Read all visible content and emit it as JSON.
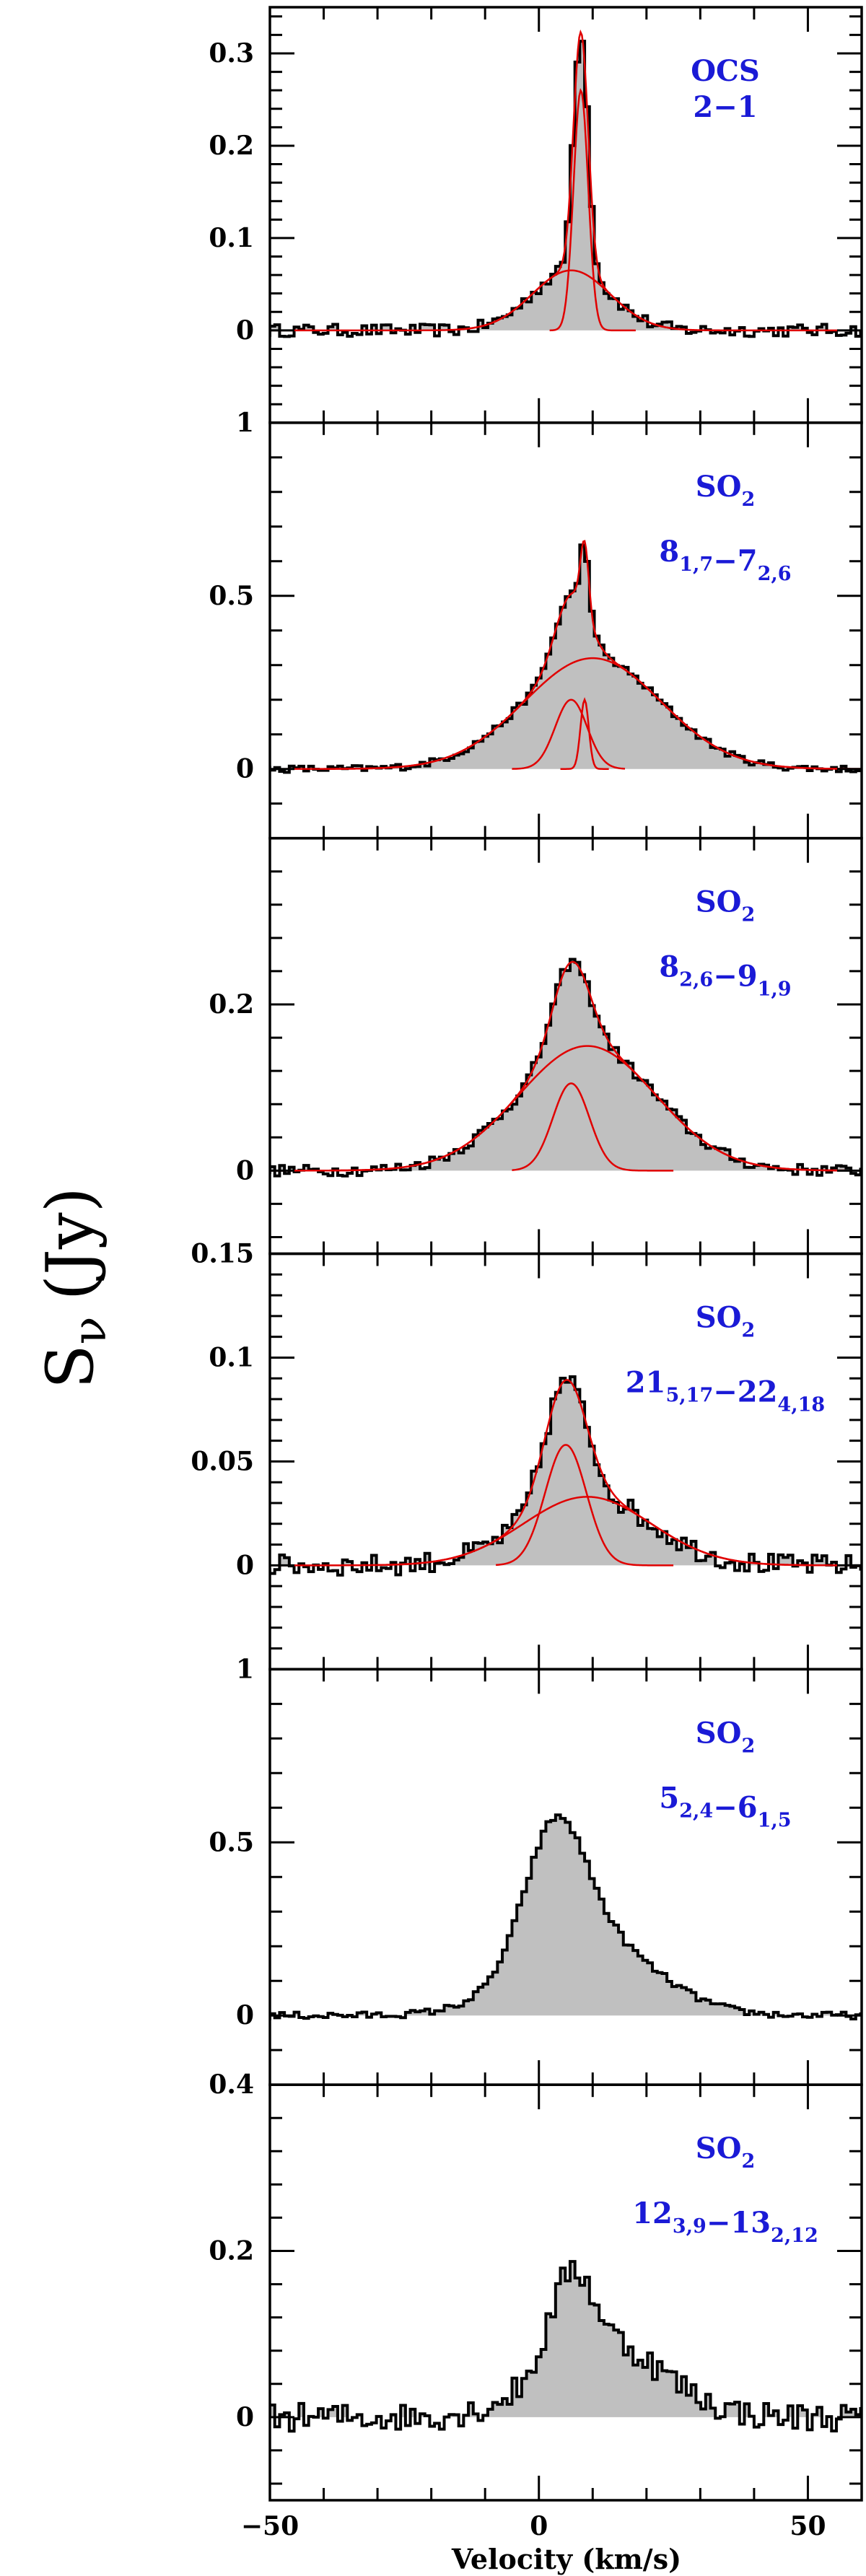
{
  "chart_data": {
    "type": "line",
    "ylabel_main": "S",
    "ylabel_sub": "ν",
    "ylabel_unit": "(Jy)",
    "xlabel": "Velocity (km/s)",
    "xlim": [
      -50,
      60
    ],
    "x_ticks": [
      -50,
      0,
      50
    ],
    "colors": {
      "spectrum": "#000000",
      "fill": "#c0c0c0",
      "fit": "#e00000",
      "label": "#1a1ad6"
    },
    "panels": [
      {
        "molecule": "OCS",
        "transition": "2−1",
        "ylim": [
          -0.1,
          0.35
        ],
        "y_ticks": [
          0,
          0.1,
          0.2,
          0.3
        ],
        "y_tick_labels": [
          "0",
          "0.1",
          "0.2",
          "0.3"
        ],
        "noise": 0.004,
        "components": [
          {
            "amp": 0.065,
            "center": 6.0,
            "fwhm": 17.0
          },
          {
            "amp": 0.26,
            "center": 7.8,
            "fwhm": 3.2
          }
        ],
        "fit_range": [
          -50,
          60
        ],
        "fit_comp_ranges": [
          [
            -15,
            25
          ],
          [
            2,
            18
          ]
        ],
        "show_fit": true
      },
      {
        "molecule": "SO",
        "molecule_sub": "2",
        "transition_parts": [
          [
            "8",
            "1,7"
          ],
          [
            "−7",
            "2,6"
          ]
        ],
        "ylim": [
          -0.2,
          1.0
        ],
        "y_ticks": [
          0,
          0.5,
          1
        ],
        "y_tick_labels": [
          "0",
          "0.5",
          "1"
        ],
        "noise": 0.006,
        "components": [
          {
            "amp": 0.32,
            "center": 10.0,
            "fwhm": 30.0
          },
          {
            "amp": 0.2,
            "center": 6.0,
            "fwhm": 7.0
          },
          {
            "amp": 0.2,
            "center": 8.5,
            "fwhm": 1.8
          }
        ],
        "fit_range": [
          -50,
          60
        ],
        "fit_comp_ranges": [
          [
            -40,
            60
          ],
          [
            -5,
            16
          ],
          [
            4,
            13
          ]
        ],
        "show_fit": true
      },
      {
        "molecule": "SO",
        "molecule_sub": "2",
        "transition_parts": [
          [
            "8",
            "2,6"
          ],
          [
            "−9",
            "1,9"
          ]
        ],
        "ylim": [
          -0.1,
          0.4
        ],
        "y_ticks": [
          0,
          0.2
        ],
        "y_tick_labels": [
          "0",
          "0.2"
        ],
        "noise": 0.004,
        "components": [
          {
            "amp": 0.15,
            "center": 9.0,
            "fwhm": 30.0
          },
          {
            "amp": 0.105,
            "center": 6.0,
            "fwhm": 8.0
          }
        ],
        "fit_range": [
          -50,
          60
        ],
        "fit_comp_ranges": [
          [
            -40,
            60
          ],
          [
            -5,
            25
          ]
        ],
        "show_fit": true
      },
      {
        "molecule": "SO",
        "molecule_sub": "2",
        "transition_parts": [
          [
            "21",
            "5,17"
          ],
          [
            "−22",
            "4,18"
          ]
        ],
        "ylim": [
          -0.05,
          0.15
        ],
        "y_ticks": [
          0,
          0.05,
          0.1,
          0.15
        ],
        "y_tick_labels": [
          "0",
          "0.05",
          "0.1",
          "0.15"
        ],
        "noise": 0.003,
        "components": [
          {
            "amp": 0.033,
            "center": 9.0,
            "fwhm": 28.0
          },
          {
            "amp": 0.058,
            "center": 5.0,
            "fwhm": 9.0
          }
        ],
        "fit_range": [
          -50,
          60
        ],
        "fit_comp_ranges": [
          [
            -30,
            60
          ],
          [
            -8,
            25
          ]
        ],
        "show_fit": true
      },
      {
        "molecule": "SO",
        "molecule_sub": "2",
        "transition_parts": [
          [
            "5",
            "2,4"
          ],
          [
            "−6",
            "1,5"
          ]
        ],
        "ylim": [
          -0.2,
          1.0
        ],
        "y_ticks": [
          0,
          0.5,
          1
        ],
        "y_tick_labels": [
          "0",
          "0.5",
          "1"
        ],
        "noise": 0.006,
        "components": [
          {
            "amp": 0.23,
            "center": 9.0,
            "fwhm": 28.0
          },
          {
            "amp": 0.37,
            "center": 3.0,
            "fwhm": 13.0
          }
        ],
        "fit_range": [
          -50,
          60
        ],
        "fit_comp_ranges": [
          [
            -40,
            60
          ],
          [
            -10,
            20
          ]
        ],
        "show_fit": false
      },
      {
        "molecule": "SO",
        "molecule_sub": "2",
        "transition_parts": [
          [
            "12",
            "3,9"
          ],
          [
            "−13",
            "2,12"
          ]
        ],
        "ylim": [
          -0.1,
          0.4
        ],
        "y_ticks": [
          0,
          0.2,
          0.4
        ],
        "y_tick_labels": [
          "0",
          "0.2",
          "0.4"
        ],
        "noise": 0.01,
        "components": [
          {
            "amp": 0.09,
            "center": 12.0,
            "fwhm": 26.0
          },
          {
            "amp": 0.1,
            "center": 6.0,
            "fwhm": 9.0
          }
        ],
        "fit_range": [
          -50,
          60
        ],
        "fit_comp_ranges": [
          [
            -40,
            60
          ],
          [
            -10,
            20
          ]
        ],
        "show_fit": false
      }
    ]
  }
}
